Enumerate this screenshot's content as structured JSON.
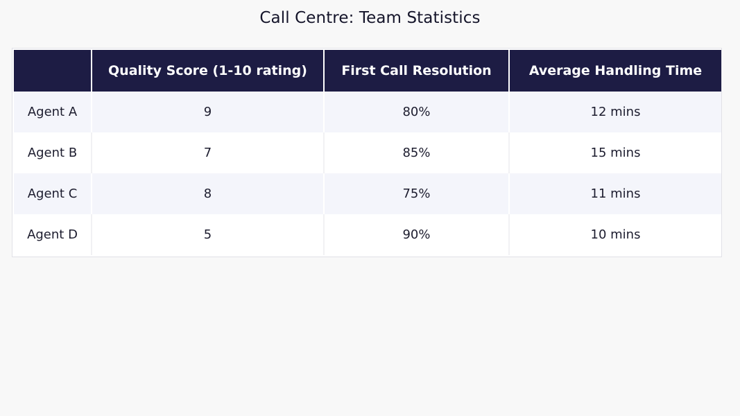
{
  "chart_data": {
    "type": "table",
    "title": "Call Centre: Team Statistics",
    "columns": [
      "",
      "Quality Score (1-10 rating)",
      "First Call Resolution",
      "Average Handling Time"
    ],
    "rows": [
      [
        "Agent A",
        "9",
        "80%",
        "12 mins"
      ],
      [
        "Agent B",
        "7",
        "85%",
        "15 mins"
      ],
      [
        "Agent C",
        "8",
        "75%",
        "11 mins"
      ],
      [
        "Agent D",
        "5",
        "90%",
        "10 mins"
      ]
    ]
  },
  "colors": {
    "header_bg": "#1d1c44",
    "header_text": "#ffffff",
    "row_odd_bg": "#f4f5fb",
    "row_even_bg": "#ffffff",
    "page_bg": "#f8f8f8"
  }
}
